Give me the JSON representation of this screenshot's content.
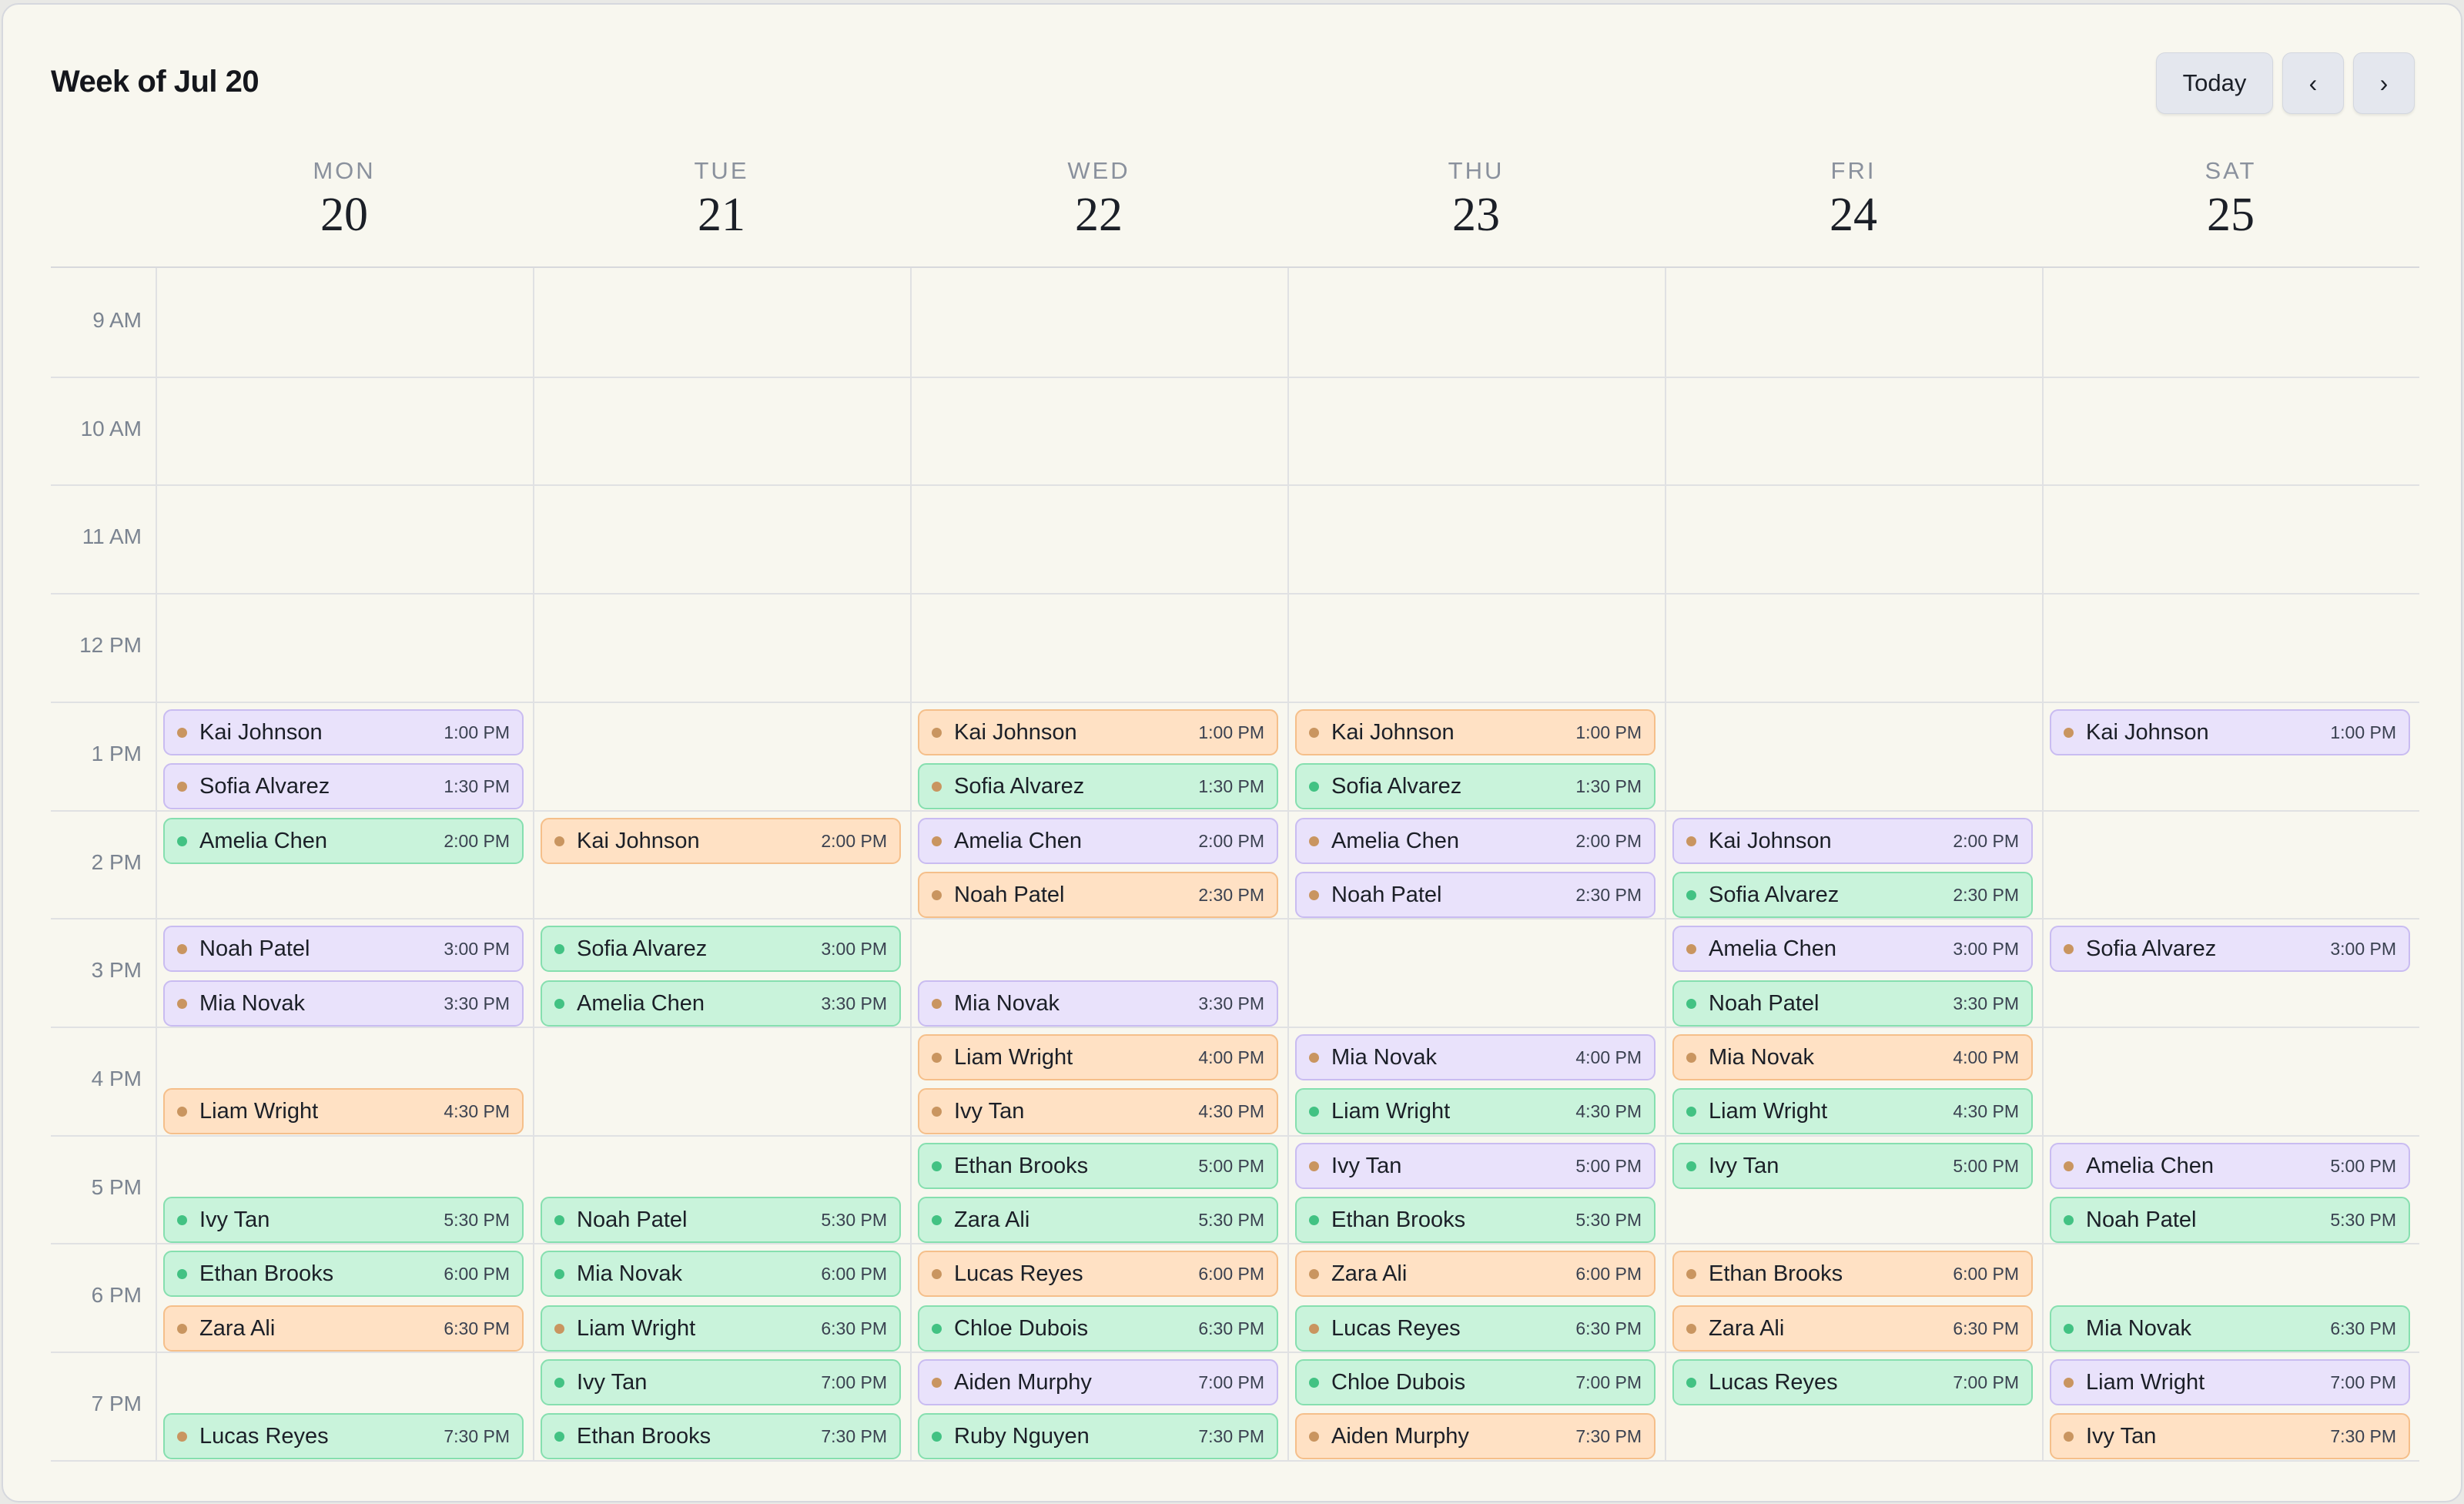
{
  "header": {
    "title": "Week of Jul 20"
  },
  "nav": {
    "today_label": "Today",
    "prev_label": "‹",
    "next_label": "›"
  },
  "days": [
    {
      "dow": "MON",
      "num": "20"
    },
    {
      "dow": "TUE",
      "num": "21"
    },
    {
      "dow": "WED",
      "num": "22"
    },
    {
      "dow": "THU",
      "num": "23"
    },
    {
      "dow": "FRI",
      "num": "24"
    },
    {
      "dow": "SAT",
      "num": "25"
    }
  ],
  "time_labels": [
    "9 AM",
    "10 AM",
    "11 AM",
    "12 PM",
    "1 PM",
    "2 PM",
    "3 PM",
    "4 PM",
    "5 PM",
    "6 PM",
    "7 PM"
  ],
  "colors": {
    "purple": "#e9e2fb",
    "green": "#c9f3db",
    "orange": "#ffe1c4",
    "dot_orange": "#c99560",
    "dot_green": "#42c283"
  },
  "events": [
    {
      "day": 0,
      "name": "Kai Johnson",
      "time": "1:00 PM",
      "color": "purple",
      "dot": "orange"
    },
    {
      "day": 0,
      "name": "Sofia Alvarez",
      "time": "1:30 PM",
      "color": "purple",
      "dot": "orange"
    },
    {
      "day": 0,
      "name": "Amelia Chen",
      "time": "2:00 PM",
      "color": "green",
      "dot": "green"
    },
    {
      "day": 0,
      "name": "Noah Patel",
      "time": "3:00 PM",
      "color": "purple",
      "dot": "orange"
    },
    {
      "day": 0,
      "name": "Mia Novak",
      "time": "3:30 PM",
      "color": "purple",
      "dot": "orange"
    },
    {
      "day": 0,
      "name": "Liam Wright",
      "time": "4:30 PM",
      "color": "orange",
      "dot": "orange"
    },
    {
      "day": 0,
      "name": "Ivy Tan",
      "time": "5:30 PM",
      "color": "green",
      "dot": "green"
    },
    {
      "day": 0,
      "name": "Ethan Brooks",
      "time": "6:00 PM",
      "color": "green",
      "dot": "green"
    },
    {
      "day": 0,
      "name": "Zara Ali",
      "time": "6:30 PM",
      "color": "orange",
      "dot": "orange"
    },
    {
      "day": 0,
      "name": "Lucas Reyes",
      "time": "7:30 PM",
      "color": "green",
      "dot": "orange"
    },
    {
      "day": 1,
      "name": "Kai Johnson",
      "time": "2:00 PM",
      "color": "orange",
      "dot": "orange"
    },
    {
      "day": 1,
      "name": "Sofia Alvarez",
      "time": "3:00 PM",
      "color": "green",
      "dot": "green"
    },
    {
      "day": 1,
      "name": "Amelia Chen",
      "time": "3:30 PM",
      "color": "green",
      "dot": "green"
    },
    {
      "day": 1,
      "name": "Noah Patel",
      "time": "5:30 PM",
      "color": "green",
      "dot": "green"
    },
    {
      "day": 1,
      "name": "Mia Novak",
      "time": "6:00 PM",
      "color": "green",
      "dot": "green"
    },
    {
      "day": 1,
      "name": "Liam Wright",
      "time": "6:30 PM",
      "color": "green",
      "dot": "orange"
    },
    {
      "day": 1,
      "name": "Ivy Tan",
      "time": "7:00 PM",
      "color": "green",
      "dot": "green"
    },
    {
      "day": 1,
      "name": "Ethan Brooks",
      "time": "7:30 PM",
      "color": "green",
      "dot": "green"
    },
    {
      "day": 2,
      "name": "Kai Johnson",
      "time": "1:00 PM",
      "color": "orange",
      "dot": "orange"
    },
    {
      "day": 2,
      "name": "Sofia Alvarez",
      "time": "1:30 PM",
      "color": "green",
      "dot": "orange"
    },
    {
      "day": 2,
      "name": "Amelia Chen",
      "time": "2:00 PM",
      "color": "purple",
      "dot": "orange"
    },
    {
      "day": 2,
      "name": "Noah Patel",
      "time": "2:30 PM",
      "color": "orange",
      "dot": "orange"
    },
    {
      "day": 2,
      "name": "Mia Novak",
      "time": "3:30 PM",
      "color": "purple",
      "dot": "orange"
    },
    {
      "day": 2,
      "name": "Liam Wright",
      "time": "4:00 PM",
      "color": "orange",
      "dot": "orange"
    },
    {
      "day": 2,
      "name": "Ivy Tan",
      "time": "4:30 PM",
      "color": "orange",
      "dot": "orange"
    },
    {
      "day": 2,
      "name": "Ethan Brooks",
      "time": "5:00 PM",
      "color": "green",
      "dot": "green"
    },
    {
      "day": 2,
      "name": "Zara Ali",
      "time": "5:30 PM",
      "color": "green",
      "dot": "green"
    },
    {
      "day": 2,
      "name": "Lucas Reyes",
      "time": "6:00 PM",
      "color": "orange",
      "dot": "orange"
    },
    {
      "day": 2,
      "name": "Chloe Dubois",
      "time": "6:30 PM",
      "color": "green",
      "dot": "green"
    },
    {
      "day": 2,
      "name": "Aiden Murphy",
      "time": "7:00 PM",
      "color": "purple",
      "dot": "orange"
    },
    {
      "day": 2,
      "name": "Ruby Nguyen",
      "time": "7:30 PM",
      "color": "green",
      "dot": "green"
    },
    {
      "day": 3,
      "name": "Kai Johnson",
      "time": "1:00 PM",
      "color": "orange",
      "dot": "orange"
    },
    {
      "day": 3,
      "name": "Sofia Alvarez",
      "time": "1:30 PM",
      "color": "green",
      "dot": "green"
    },
    {
      "day": 3,
      "name": "Amelia Chen",
      "time": "2:00 PM",
      "color": "purple",
      "dot": "orange"
    },
    {
      "day": 3,
      "name": "Noah Patel",
      "time": "2:30 PM",
      "color": "purple",
      "dot": "orange"
    },
    {
      "day": 3,
      "name": "Mia Novak",
      "time": "4:00 PM",
      "color": "purple",
      "dot": "orange"
    },
    {
      "day": 3,
      "name": "Liam Wright",
      "time": "4:30 PM",
      "color": "green",
      "dot": "green"
    },
    {
      "day": 3,
      "name": "Ivy Tan",
      "time": "5:00 PM",
      "color": "purple",
      "dot": "orange"
    },
    {
      "day": 3,
      "name": "Ethan Brooks",
      "time": "5:30 PM",
      "color": "green",
      "dot": "green"
    },
    {
      "day": 3,
      "name": "Zara Ali",
      "time": "6:00 PM",
      "color": "orange",
      "dot": "orange"
    },
    {
      "day": 3,
      "name": "Lucas Reyes",
      "time": "6:30 PM",
      "color": "green",
      "dot": "orange"
    },
    {
      "day": 3,
      "name": "Chloe Dubois",
      "time": "7:00 PM",
      "color": "green",
      "dot": "green"
    },
    {
      "day": 3,
      "name": "Aiden Murphy",
      "time": "7:30 PM",
      "color": "orange",
      "dot": "orange"
    },
    {
      "day": 4,
      "name": "Kai Johnson",
      "time": "2:00 PM",
      "color": "purple",
      "dot": "orange"
    },
    {
      "day": 4,
      "name": "Sofia Alvarez",
      "time": "2:30 PM",
      "color": "green",
      "dot": "green"
    },
    {
      "day": 4,
      "name": "Amelia Chen",
      "time": "3:00 PM",
      "color": "purple",
      "dot": "orange"
    },
    {
      "day": 4,
      "name": "Noah Patel",
      "time": "3:30 PM",
      "color": "green",
      "dot": "green"
    },
    {
      "day": 4,
      "name": "Mia Novak",
      "time": "4:00 PM",
      "color": "orange",
      "dot": "orange"
    },
    {
      "day": 4,
      "name": "Liam Wright",
      "time": "4:30 PM",
      "color": "green",
      "dot": "green"
    },
    {
      "day": 4,
      "name": "Ivy Tan",
      "time": "5:00 PM",
      "color": "green",
      "dot": "green"
    },
    {
      "day": 4,
      "name": "Ethan Brooks",
      "time": "6:00 PM",
      "color": "orange",
      "dot": "orange"
    },
    {
      "day": 4,
      "name": "Zara Ali",
      "time": "6:30 PM",
      "color": "orange",
      "dot": "orange"
    },
    {
      "day": 4,
      "name": "Lucas Reyes",
      "time": "7:00 PM",
      "color": "green",
      "dot": "green"
    },
    {
      "day": 5,
      "name": "Kai Johnson",
      "time": "1:00 PM",
      "color": "purple",
      "dot": "orange"
    },
    {
      "day": 5,
      "name": "Sofia Alvarez",
      "time": "3:00 PM",
      "color": "purple",
      "dot": "orange"
    },
    {
      "day": 5,
      "name": "Amelia Chen",
      "time": "5:00 PM",
      "color": "purple",
      "dot": "orange"
    },
    {
      "day": 5,
      "name": "Noah Patel",
      "time": "5:30 PM",
      "color": "green",
      "dot": "green"
    },
    {
      "day": 5,
      "name": "Mia Novak",
      "time": "6:30 PM",
      "color": "green",
      "dot": "green"
    },
    {
      "day": 5,
      "name": "Liam Wright",
      "time": "7:00 PM",
      "color": "purple",
      "dot": "orange"
    },
    {
      "day": 5,
      "name": "Ivy Tan",
      "time": "7:30 PM",
      "color": "orange",
      "dot": "orange"
    }
  ]
}
